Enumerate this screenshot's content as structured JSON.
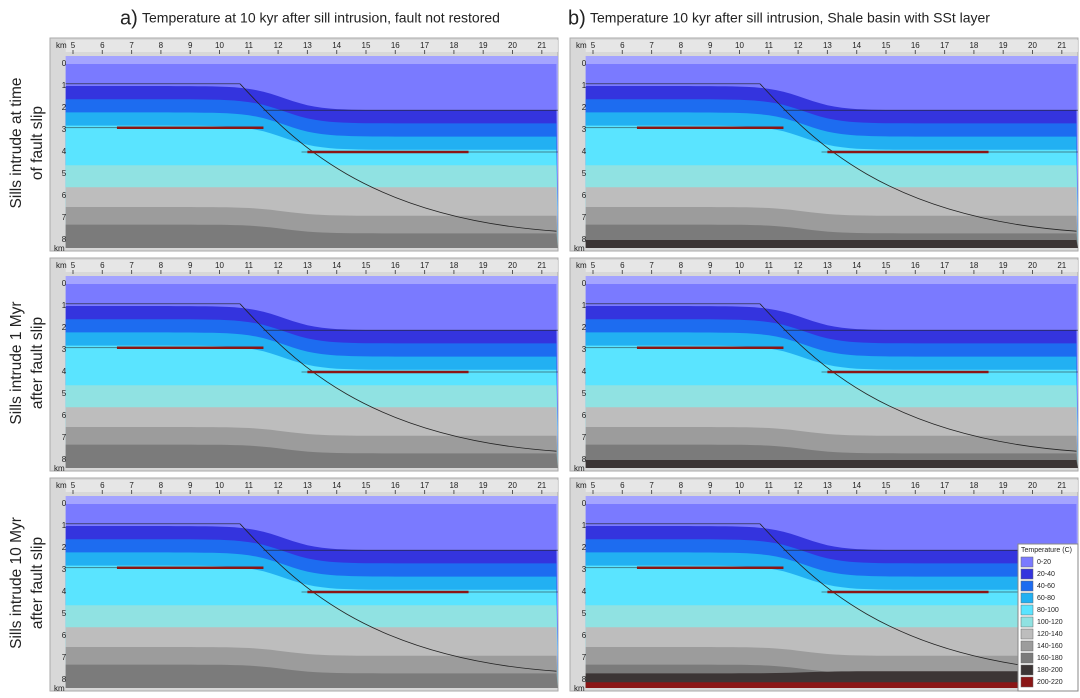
{
  "columns": [
    {
      "letter": "a)",
      "title": "Temperature at 10 kyr after sill intrusion, fault not restored"
    },
    {
      "letter": "b)",
      "title": "Temperature 10 kyr after sill intrusion, Shale basin with SSt layer"
    }
  ],
  "rows": [
    {
      "lines": [
        "Sills intrude at time",
        "of fault slip"
      ]
    },
    {
      "lines": [
        "Sills intrude 1 Myr",
        "after fault slip"
      ]
    },
    {
      "lines": [
        "Sills intrude 10 Myr",
        "after fault slip"
      ]
    }
  ],
  "axis": {
    "unit": "km",
    "x_ticks": [
      5,
      6,
      7,
      8,
      9,
      10,
      11,
      12,
      13,
      14,
      15,
      16,
      17,
      18,
      19,
      20,
      21
    ],
    "depth_ticks": [
      0,
      1,
      2,
      3,
      4,
      5,
      6,
      7,
      8
    ]
  },
  "legend": {
    "title": "Temperature (C)",
    "items": [
      {
        "label": "0-20",
        "color": "#7a7aff"
      },
      {
        "label": "20-40",
        "color": "#3434de"
      },
      {
        "label": "40-60",
        "color": "#1d6cf0"
      },
      {
        "label": "60-80",
        "color": "#22b0f2"
      },
      {
        "label": "80-100",
        "color": "#5ae4ff"
      },
      {
        "label": "100-120",
        "color": "#90e2e2"
      },
      {
        "label": "120-140",
        "color": "#bdbdbd"
      },
      {
        "label": "140-160",
        "color": "#9c9c9c"
      },
      {
        "label": "160-180",
        "color": "#7b7b7b"
      },
      {
        "label": "180-200",
        "color": "#3c3535"
      },
      {
        "label": "200-220",
        "color": "#8a1616"
      }
    ]
  }
}
